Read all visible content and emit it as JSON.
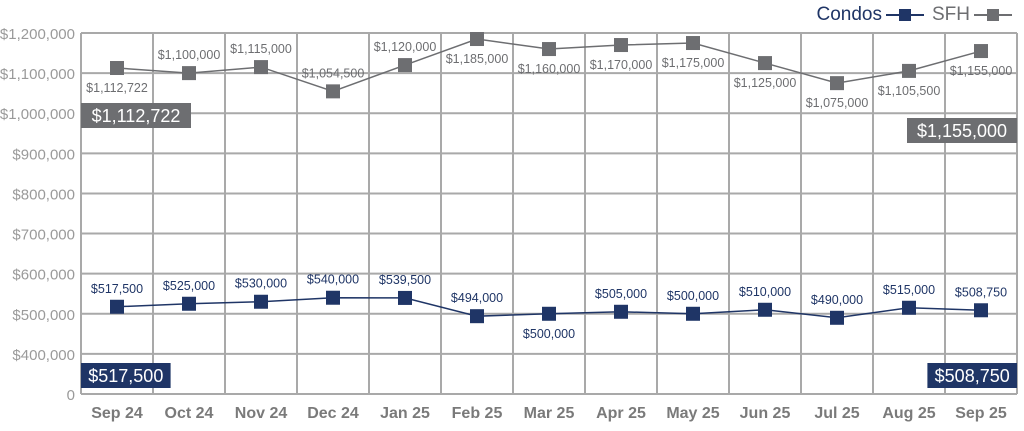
{
  "chart_data": {
    "type": "line",
    "title": "",
    "xlabel": "",
    "ylabel": "",
    "categories": [
      "Sep 24",
      "Oct 24",
      "Nov 24",
      "Dec 24",
      "Jan 25",
      "Feb 25",
      "Mar 25",
      "Apr 25",
      "May 25",
      "Jun 25",
      "Jul 25",
      "Aug 25",
      "Sep 25"
    ],
    "y_ticks": [
      0,
      400000,
      500000,
      600000,
      700000,
      800000,
      900000,
      1000000,
      1100000,
      1200000
    ],
    "y_tick_labels": [
      "0",
      "$400,000",
      "$500,000",
      "$600,000",
      "$700,000",
      "$800,000",
      "$900,000",
      "$1,000,000",
      "$1,100,000",
      "$1,200,000"
    ],
    "ylim": [
      0,
      1200000
    ],
    "grid": true,
    "legend_position": "top-right",
    "series": [
      {
        "name": "Condos",
        "color": "#1f3566",
        "values": [
          517500,
          525000,
          530000,
          540000,
          539500,
          494000,
          500000,
          505000,
          500000,
          510000,
          490000,
          515000,
          508750
        ],
        "labels": [
          "$517,500",
          "$525,000",
          "$530,000",
          "$540,000",
          "$539,500",
          "$494,000",
          "$500,000",
          "$505,000",
          "$500,000",
          "$510,000",
          "$490,000",
          "$515,000",
          "$508,750"
        ],
        "label_side": [
          "above",
          "above",
          "above",
          "above",
          "above",
          "above",
          "below",
          "above",
          "above",
          "above",
          "above",
          "above",
          "above"
        ],
        "start_callout": "$517,500",
        "end_callout": "$508,750"
      },
      {
        "name": "SFH",
        "color": "#6d6e71",
        "values": [
          1112722,
          1100000,
          1115000,
          1054500,
          1120000,
          1185000,
          1160000,
          1170000,
          1175000,
          1125000,
          1075000,
          1105500,
          1155000
        ],
        "labels": [
          "$1,112,722",
          "$1,100,000",
          "$1,115,000",
          "$1,054,500",
          "$1,120,000",
          "$1,185,000",
          "$1,160,000",
          "$1,170,000",
          "$1,175,000",
          "$1,125,000",
          "$1,075,000",
          "$1,105,500",
          "$1,155,000"
        ],
        "label_side": [
          "below",
          "above",
          "above",
          "above",
          "above",
          "below",
          "below",
          "below",
          "below",
          "below",
          "below",
          "below",
          "below"
        ],
        "start_callout": "$1,112,722",
        "end_callout": "$1,155,000"
      }
    ]
  }
}
